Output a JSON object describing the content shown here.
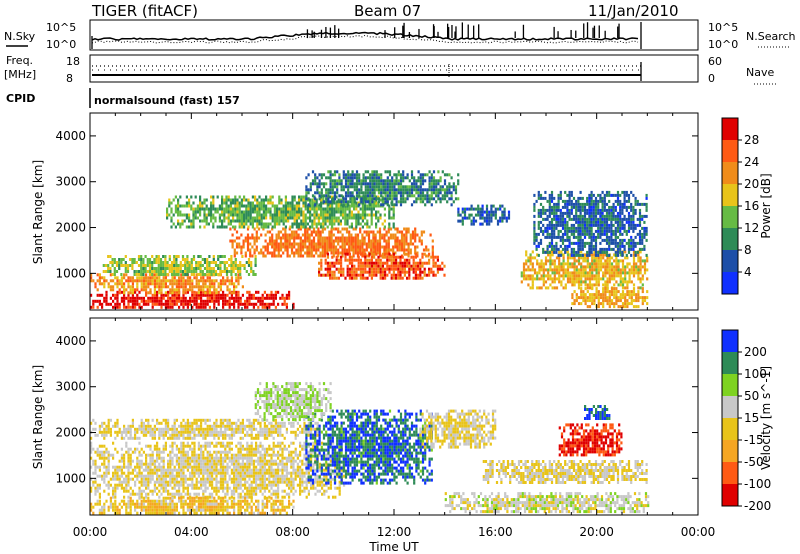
{
  "header": {
    "radar": "TIGER (fitACF)",
    "beam": "Beam 07",
    "date": "11/Jan/2010"
  },
  "noise_panel": {
    "left_label": "N.Sky",
    "left_ticks": [
      "10^5",
      "10^0"
    ],
    "right_label": "N.Search",
    "right_ticks": [
      "10^5",
      "10^0"
    ]
  },
  "freq_panel": {
    "left_label_1": "Freq.",
    "left_label_2": "[MHz]",
    "left_ticks": [
      "18",
      "8"
    ],
    "right_label": "Nave",
    "right_ticks": [
      "60",
      "0"
    ]
  },
  "cpid": {
    "label": "CPID",
    "value": "normalsound (fast) 157"
  },
  "chart_data": [
    {
      "type": "heatmap",
      "title": "",
      "xlabel": "Time UT",
      "ylabel": "Slant Range [km]",
      "x_ticks": [
        "00:00",
        "04:00",
        "08:00",
        "12:00",
        "16:00",
        "20:00",
        "00:00"
      ],
      "xlim_hours": [
        0,
        24
      ],
      "ylim": [
        200,
        4500
      ],
      "y_ticks": [
        1000,
        2000,
        3000,
        4000
      ],
      "grid": false,
      "colorbar": {
        "label": "Power [dB]",
        "ticks": [
          4,
          8,
          12,
          16,
          20,
          24,
          28
        ],
        "range": [
          0,
          32
        ],
        "colors": [
          "#1030ff",
          "#1d4fa8",
          "#2e8b57",
          "#66bb44",
          "#e8c41a",
          "#f08c1a",
          "#ff5a14",
          "#e00000"
        ]
      },
      "regions": [
        {
          "t": [
            0.0,
            8.0
          ],
          "r": [
            250,
            620
          ],
          "level": 30
        },
        {
          "t": [
            0.0,
            6.0
          ],
          "r": [
            600,
            1000
          ],
          "level": 22
        },
        {
          "t": [
            0.5,
            6.5
          ],
          "r": [
            950,
            1400
          ],
          "level": 15
        },
        {
          "t": [
            5.5,
            13.5
          ],
          "r": [
            1350,
            2000
          ],
          "level": 24
        },
        {
          "t": [
            9.0,
            14.0
          ],
          "r": [
            900,
            1450
          ],
          "level": 26
        },
        {
          "t": [
            3.0,
            12.0
          ],
          "r": [
            2000,
            2700
          ],
          "level": 13
        },
        {
          "t": [
            8.5,
            14.5
          ],
          "r": [
            2500,
            3250
          ],
          "level": 9
        },
        {
          "t": [
            14.5,
            16.5
          ],
          "r": [
            2100,
            2500
          ],
          "level": 7
        },
        {
          "t": [
            17.0,
            22.0
          ],
          "r": [
            700,
            1500
          ],
          "level": 19
        },
        {
          "t": [
            17.5,
            22.0
          ],
          "r": [
            1400,
            2800
          ],
          "level": 7
        },
        {
          "t": [
            19.0,
            22.0
          ],
          "r": [
            300,
            700
          ],
          "level": 20
        }
      ]
    },
    {
      "type": "heatmap",
      "title": "",
      "xlabel": "Time UT",
      "ylabel": "Slant Range [km]",
      "x_ticks": [
        "00:00",
        "04:00",
        "08:00",
        "12:00",
        "16:00",
        "20:00",
        "00:00"
      ],
      "xlim_hours": [
        0,
        24
      ],
      "ylim": [
        200,
        4500
      ],
      "y_ticks": [
        1000,
        2000,
        3000,
        4000
      ],
      "grid": false,
      "colorbar": {
        "label": "Velocity [m s^-1]",
        "ticks": [
          200,
          100,
          50,
          15,
          -15,
          -50,
          -100,
          -200
        ],
        "range": [
          -250,
          250
        ],
        "colors": [
          "#e00000",
          "#ff5a14",
          "#f5a623",
          "#e8c41a",
          "#c8c8c8",
          "#7ed321",
          "#2e8b57",
          "#1030ff"
        ]
      },
      "regions": [
        {
          "t": [
            0.0,
            10.0
          ],
          "r": [
            600,
            1800
          ],
          "level": 0
        },
        {
          "t": [
            0.0,
            9.0
          ],
          "r": [
            1900,
            2300
          ],
          "level": 0
        },
        {
          "t": [
            0.0,
            8.0
          ],
          "r": [
            250,
            600
          ],
          "level": -40
        },
        {
          "t": [
            8.5,
            13.5
          ],
          "r": [
            900,
            2500
          ],
          "level": 180
        },
        {
          "t": [
            6.5,
            9.5
          ],
          "r": [
            2300,
            3100
          ],
          "level": 60
        },
        {
          "t": [
            13.0,
            16.0
          ],
          "r": [
            1700,
            2500
          ],
          "level": 0
        },
        {
          "t": [
            14.0,
            22.0
          ],
          "r": [
            250,
            700
          ],
          "level": 30
        },
        {
          "t": [
            15.5,
            22.0
          ],
          "r": [
            900,
            1400
          ],
          "level": 0
        },
        {
          "t": [
            18.5,
            21.0
          ],
          "r": [
            1500,
            2200
          ],
          "level": -200
        },
        {
          "t": [
            19.5,
            20.5
          ],
          "r": [
            2300,
            2600
          ],
          "level": 200
        }
      ]
    }
  ]
}
